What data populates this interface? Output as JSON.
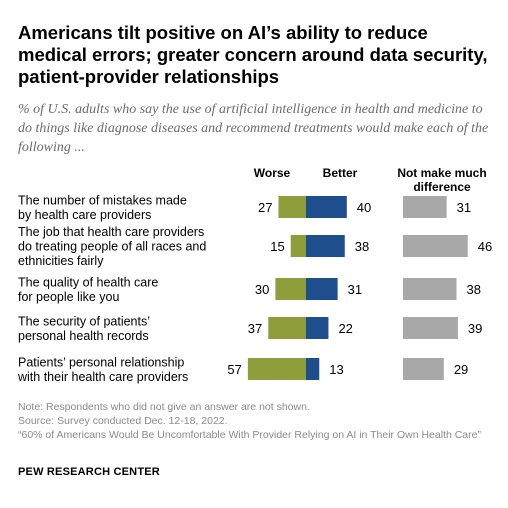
{
  "title": "Americans tilt positive on AI’s ability to reduce medical errors; greater concern around data security, patient-provider relationships",
  "subtitle": "% of U.S. adults who say the use of artificial intelligence in health and medicine to do things like diagnose diseases and recommend treatments would make each of the following ...",
  "notes": {
    "note": "Note: Respondents who did not give an answer are not shown.",
    "source": "Source: Survey conducted Dec. 12-18, 2022.",
    "report": "“60% of Americans Would Be Uncomfortable With Provider Relying on AI in Their Own Health Care”"
  },
  "org": "PEW RESEARCH CENTER",
  "chart_data": {
    "type": "bar",
    "categories": [
      [
        "The number of mistakes made",
        "by health care providers"
      ],
      [
        "The job that health care providers",
        "do treating people of all races and",
        "ethnicities fairly"
      ],
      [
        "The quality of health care",
        "for people like you"
      ],
      [
        "The security of patients’",
        "personal health records"
      ],
      [
        "Patients’ personal relationship",
        "with their health care providers"
      ]
    ],
    "series": [
      {
        "name": "Worse",
        "values": [
          27,
          15,
          30,
          37,
          57
        ],
        "color": "#8f9e3b"
      },
      {
        "name": "Better",
        "values": [
          40,
          38,
          31,
          22,
          13
        ],
        "color": "#1f4e8c"
      },
      {
        "name": "Not make much difference",
        "values": [
          31,
          46,
          38,
          39,
          29
        ],
        "color": "#a8a8a8"
      }
    ],
    "series_header_lines": {
      "Worse": [
        "Worse"
      ],
      "Better": [
        "Better"
      ],
      "Not make much difference": [
        "Not make much",
        "difference"
      ]
    }
  }
}
